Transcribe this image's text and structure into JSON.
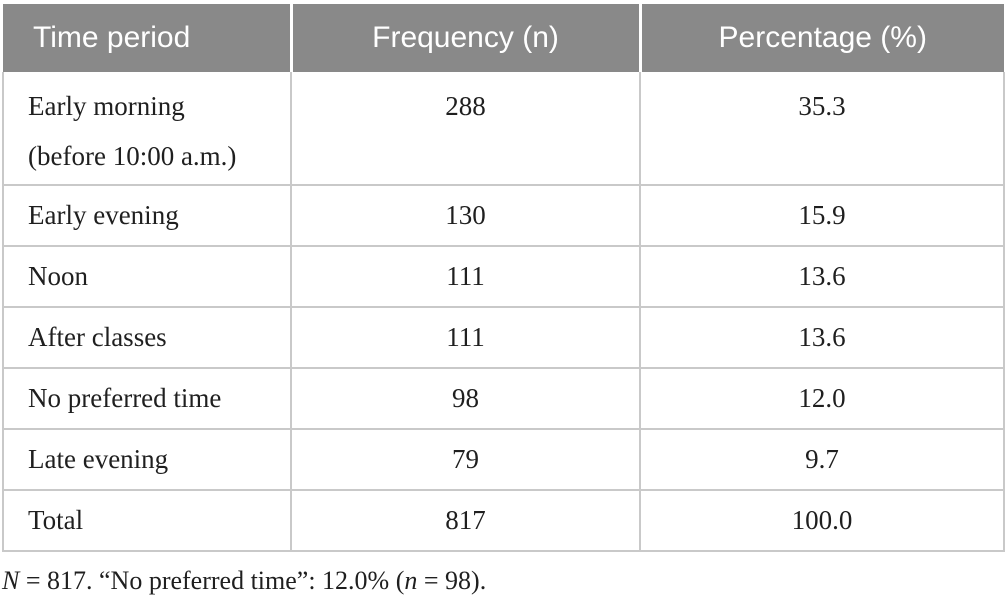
{
  "colors": {
    "header_background": "#898989",
    "header_text": "#ffffff",
    "border": "#c9c9c9",
    "body_text": "#1f1f1f"
  },
  "table": {
    "columns": [
      {
        "label": "Time period"
      },
      {
        "label": "Frequency (n)"
      },
      {
        "label": "Percentage (%)"
      }
    ],
    "rows": [
      {
        "period": "Early morning",
        "note": "(before 10:00 a.m.)",
        "frequency": "288",
        "percentage": "35.3"
      },
      {
        "period": "Early evening",
        "frequency": "130",
        "percentage": "15.9"
      },
      {
        "period": "Noon",
        "frequency": "111",
        "percentage": "13.6"
      },
      {
        "period": "After classes",
        "frequency": "111",
        "percentage": "13.6"
      },
      {
        "period": "No preferred time",
        "frequency": "98",
        "percentage": "12.0"
      },
      {
        "period": "Late evening",
        "frequency": "79",
        "percentage": "9.7"
      },
      {
        "period": "Total",
        "frequency": "817",
        "percentage": "100.0"
      }
    ],
    "footnote": {
      "segments": [
        {
          "text": "N",
          "italic": true
        },
        {
          "text": " = 817. “No preferred time”: 12.0% (",
          "italic": false
        },
        {
          "text": "n",
          "italic": true
        },
        {
          "text": " = 98).",
          "italic": false
        }
      ]
    }
  },
  "chart_data": {
    "type": "table",
    "columns": [
      "Time period",
      "Frequency (n)",
      "Percentage (%)"
    ],
    "rows": [
      [
        "Early morning (before 10:00 a.m.)",
        288,
        35.3
      ],
      [
        "Early evening",
        130,
        15.9
      ],
      [
        "Noon",
        111,
        13.6
      ],
      [
        "After classes",
        111,
        13.6
      ],
      [
        "No preferred time",
        98,
        12.0
      ],
      [
        "Late evening",
        79,
        9.7
      ],
      [
        "Total",
        817,
        100.0
      ]
    ]
  }
}
